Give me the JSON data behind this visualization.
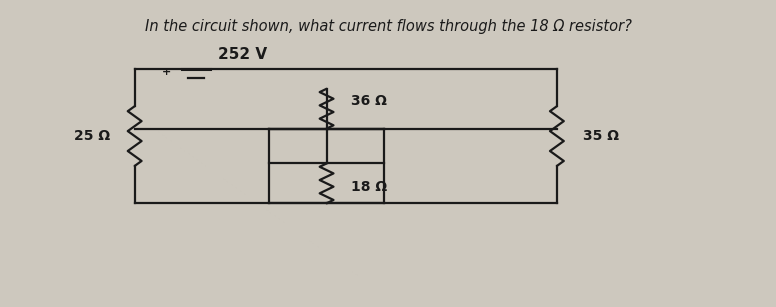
{
  "title": "In the circuit shown, what current flows through the 18 Ω resistor?",
  "title_fontsize": 10.5,
  "voltage_label": "252 V",
  "r1_label": "25 Ω",
  "r2_label": "36 Ω",
  "r3_label": "18 Ω",
  "r4_label": "35 Ω",
  "bg_color": "#cdc8be",
  "wire_color": "#1a1a1a",
  "text_color": "#1a1a1a",
  "fig_width": 7.76,
  "fig_height": 3.07
}
